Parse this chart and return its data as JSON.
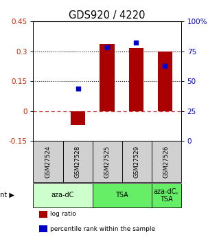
{
  "title": "GDS920 / 4220",
  "samples": [
    "GSM27524",
    "GSM27528",
    "GSM27525",
    "GSM27529",
    "GSM27526"
  ],
  "log_ratios": [
    0.0,
    -0.07,
    0.335,
    0.315,
    0.298
  ],
  "percentile_ranks": [
    null,
    44,
    78,
    82,
    63
  ],
  "ylim_left": [
    -0.15,
    0.45
  ],
  "ylim_right": [
    0,
    100
  ],
  "yticks_left": [
    -0.15,
    0.0,
    0.15,
    0.3,
    0.45
  ],
  "yticks_right": [
    0,
    25,
    50,
    75,
    100
  ],
  "ytick_labels_left": [
    "-0.15",
    "0",
    "0.15",
    "0.3",
    "0.45"
  ],
  "ytick_labels_right": [
    "0",
    "25",
    "50",
    "75",
    "100%"
  ],
  "bar_color": "#aa0000",
  "dot_color": "#0000cc",
  "group_info": [
    {
      "cols": [
        0,
        1
      ],
      "label": "aza-dC",
      "color": "#ccffcc"
    },
    {
      "cols": [
        2,
        3
      ],
      "label": "TSA",
      "color": "#66ee66"
    },
    {
      "cols": [
        4
      ],
      "label": "aza-dC,\nTSA",
      "color": "#66ee66"
    }
  ],
  "legend_items": [
    {
      "color": "#aa0000",
      "label": " log ratio"
    },
    {
      "color": "#0000cc",
      "label": " percentile rank within the sample"
    }
  ]
}
